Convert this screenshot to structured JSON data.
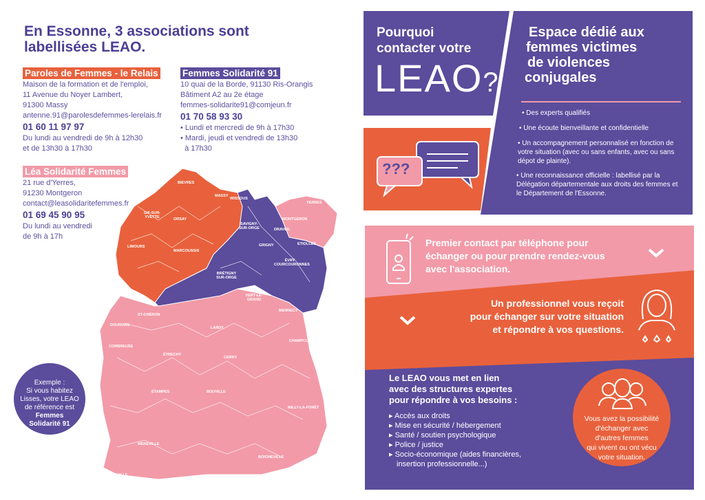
{
  "title": "En Essonne, 3 associations sont labellisées LEAO.",
  "associations": [
    {
      "name": "Paroles de Femmes - le Relais",
      "color": "#e8613c",
      "lines": [
        "Maison de la formation et de l'emploi,",
        "11 Avenue du Noyer Lambert,",
        "91300 Massy",
        "antenne.91@parolesdefemmes-lerelais.fr"
      ],
      "phone": "01 60 11 97 97",
      "hours": [
        "Du lundi au vendredi de 9h à 12h30",
        "et de 13h30 à 17h30"
      ]
    },
    {
      "name": "Femmes Solidarité 91",
      "color": "#5b4c9c",
      "lines": [
        "10 quai de la Borde, 91130 Ris-Orangis",
        "Bâtiment A2 au 2e étage",
        "femmes-solidarite91@comjeun.fr"
      ],
      "phone": "01 70 58 93 30",
      "hours": [
        "• Lundi et mercredi de 9h à 17h30",
        "• Mardi, jeudi et vendredi de 13h30",
        "  à 17h30"
      ]
    },
    {
      "name": "Léa Solidarité Femmes",
      "color": "#f29aa8",
      "lines": [
        "21 rue d'Yerres,",
        "91230 Montgeron",
        "contact@leasolidaritefemmes.fr"
      ],
      "phone": "01 69 45 90 95",
      "hours": [
        "Du lundi au vendredi",
        "de 9h à 17h"
      ]
    }
  ],
  "map": {
    "labels": [
      "BIEVRES",
      "MASSY",
      "WISSOUS",
      "GIF-SUR-YVETTE",
      "ORSAY",
      "LIMOURS",
      "MARCOUSSIS",
      "SAVIGNY-SUR-ORGE",
      "GRIGNY",
      "MONTGERON",
      "YERRES",
      "DRAVEIL",
      "ETIOLLES",
      "ÉVRY COURCOURONNES",
      "BRÉTIGNY SUR-ORGE",
      "VERT-LE-GRAND",
      "MENNECY",
      "ST-CHÉRON",
      "DOURDAN",
      "CORBREUSE",
      "LARDY",
      "ÉTRECHY",
      "CERNY",
      "CHAMPCUEIL",
      "ÉTAMPES",
      "BOUVILLE",
      "MILLY-LA-FORÊT",
      "MÉRÉVILLE",
      "ANGERVILLE",
      "BOIGNEVILLE"
    ]
  },
  "example": {
    "lines": [
      "Exemple :",
      "Si vous habitez",
      "Lisses, votre LEAO",
      "de référence est"
    ],
    "bold": [
      "Femmes",
      "Solidarité 91"
    ]
  },
  "why": {
    "lines": [
      "Pourquoi",
      "contacter votre"
    ],
    "logo": "LEAO",
    "q": "?"
  },
  "bubble": {
    "q": "???"
  },
  "space": {
    "title": [
      "Espace dédié aux",
      "femmes victimes",
      "de violences",
      "conjugales"
    ],
    "items": [
      "• Des experts qualifiés",
      "• Une écoute bienveillante et confidentielle",
      "• Un accompagnement personnalisé en fonction de votre situation (avec ou sans enfants, avec ou sans dépot de plainte).",
      "• Une reconnaissance officielle : labellisé par la Délégation départementale aux droits des femmes et le Département de l'Essonne."
    ]
  },
  "steps": [
    {
      "text": [
        "Premier contact par téléphone pour",
        "échanger ou pour prendre rendez-vous",
        "avec l'association."
      ]
    },
    {
      "text": [
        "Un professionnel vous reçoit",
        "pour échanger sur votre situation",
        "et répondre à vos questions."
      ]
    }
  ],
  "network": {
    "title": [
      "Le LEAO vous met en lien",
      "avec des structures expertes",
      "pour répondre à vos besoins :"
    ],
    "items": [
      "Accès aux droits",
      "Mise en sécurité / hébergement",
      "Santé / soutien psychologique",
      "Police / justice",
      "Socio-économique (aides financières, insertion professionnelle...)"
    ]
  },
  "group": {
    "lines": [
      "Vous avez la possibilité",
      "d'échanger avec",
      "d'autres femmes",
      "qui vivent ou ont vécu",
      "votre situation."
    ]
  },
  "colors": {
    "purple": "#5b4c9c",
    "orange": "#e8613c",
    "pink": "#f29aa8"
  }
}
